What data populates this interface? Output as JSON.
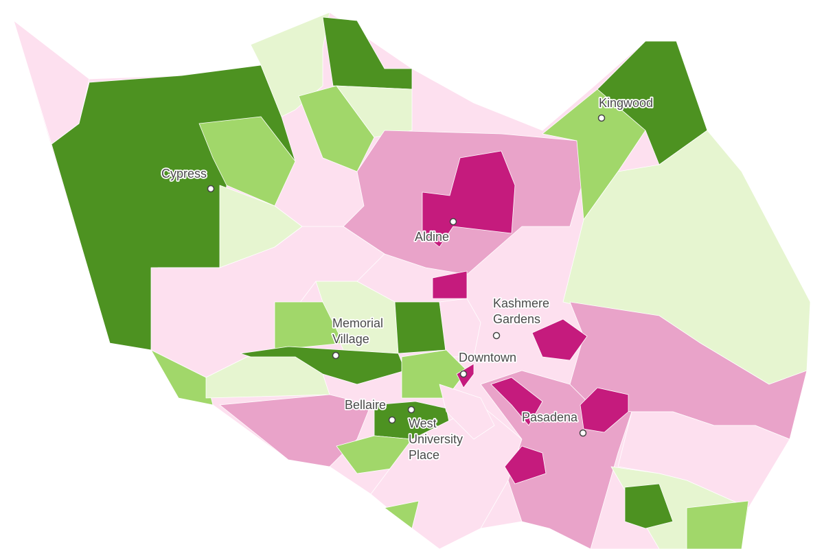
{
  "map": {
    "places": [
      {
        "lines": [
          "Cypress"
        ]
      },
      {
        "lines": [
          "Kingwood"
        ]
      },
      {
        "lines": [
          "Aldine"
        ]
      },
      {
        "lines": [
          "Kashmere",
          "Gardens"
        ]
      },
      {
        "lines": [
          "Memorial",
          "Village"
        ]
      },
      {
        "lines": [
          "Downtown"
        ]
      },
      {
        "lines": [
          "Bellaire"
        ]
      },
      {
        "lines": [
          "West",
          "University",
          "Place"
        ]
      },
      {
        "lines": [
          "Pasadena"
        ]
      }
    ]
  }
}
